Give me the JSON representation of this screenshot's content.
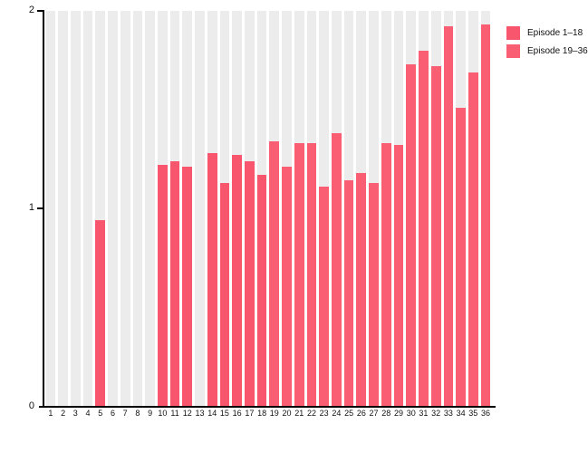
{
  "figure": {
    "background": "#ffffff"
  },
  "legend": {
    "position": "top-right",
    "entries": [
      {
        "label": "Episode 1–18",
        "color": "#f8566c"
      },
      {
        "label": "Episode 19–36",
        "color": "#fa5e72"
      }
    ]
  },
  "chart_data": {
    "type": "bar",
    "title": "",
    "xlabel": "",
    "ylabel": "",
    "ylim": [
      0,
      2
    ],
    "yticks": [
      0,
      1,
      2
    ],
    "ytick_labels": [
      "2",
      "1",
      "0"
    ],
    "grid": false,
    "legend_position": "right",
    "background_stripe_color": "#ececec",
    "categories": [
      "1",
      "2",
      "3",
      "4",
      "5",
      "6",
      "7",
      "8",
      "9",
      "10",
      "11",
      "12",
      "13",
      "14",
      "15",
      "16",
      "17",
      "18",
      "19",
      "20",
      "21",
      "22",
      "23",
      "24",
      "25",
      "26",
      "27",
      "28",
      "29",
      "30",
      "31",
      "32",
      "33",
      "34",
      "35",
      "36"
    ],
    "values": [
      0,
      0,
      0,
      0,
      0.94,
      0,
      0,
      0,
      0,
      1.22,
      1.24,
      1.21,
      0,
      1.28,
      1.13,
      1.27,
      1.24,
      1.17,
      1.34,
      1.21,
      1.33,
      1.33,
      1.11,
      1.38,
      1.14,
      1.18,
      1.13,
      1.33,
      1.32,
      1.73,
      1.8,
      1.72,
      1.92,
      1.51,
      1.69,
      1.93
    ],
    "series": [
      {
        "name": "Episode 1–18",
        "color": "#f8566c",
        "category_range": [
          1,
          18
        ]
      },
      {
        "name": "Episode 19–36",
        "color": "#fa5e72",
        "category_range": [
          19,
          36
        ]
      }
    ]
  }
}
